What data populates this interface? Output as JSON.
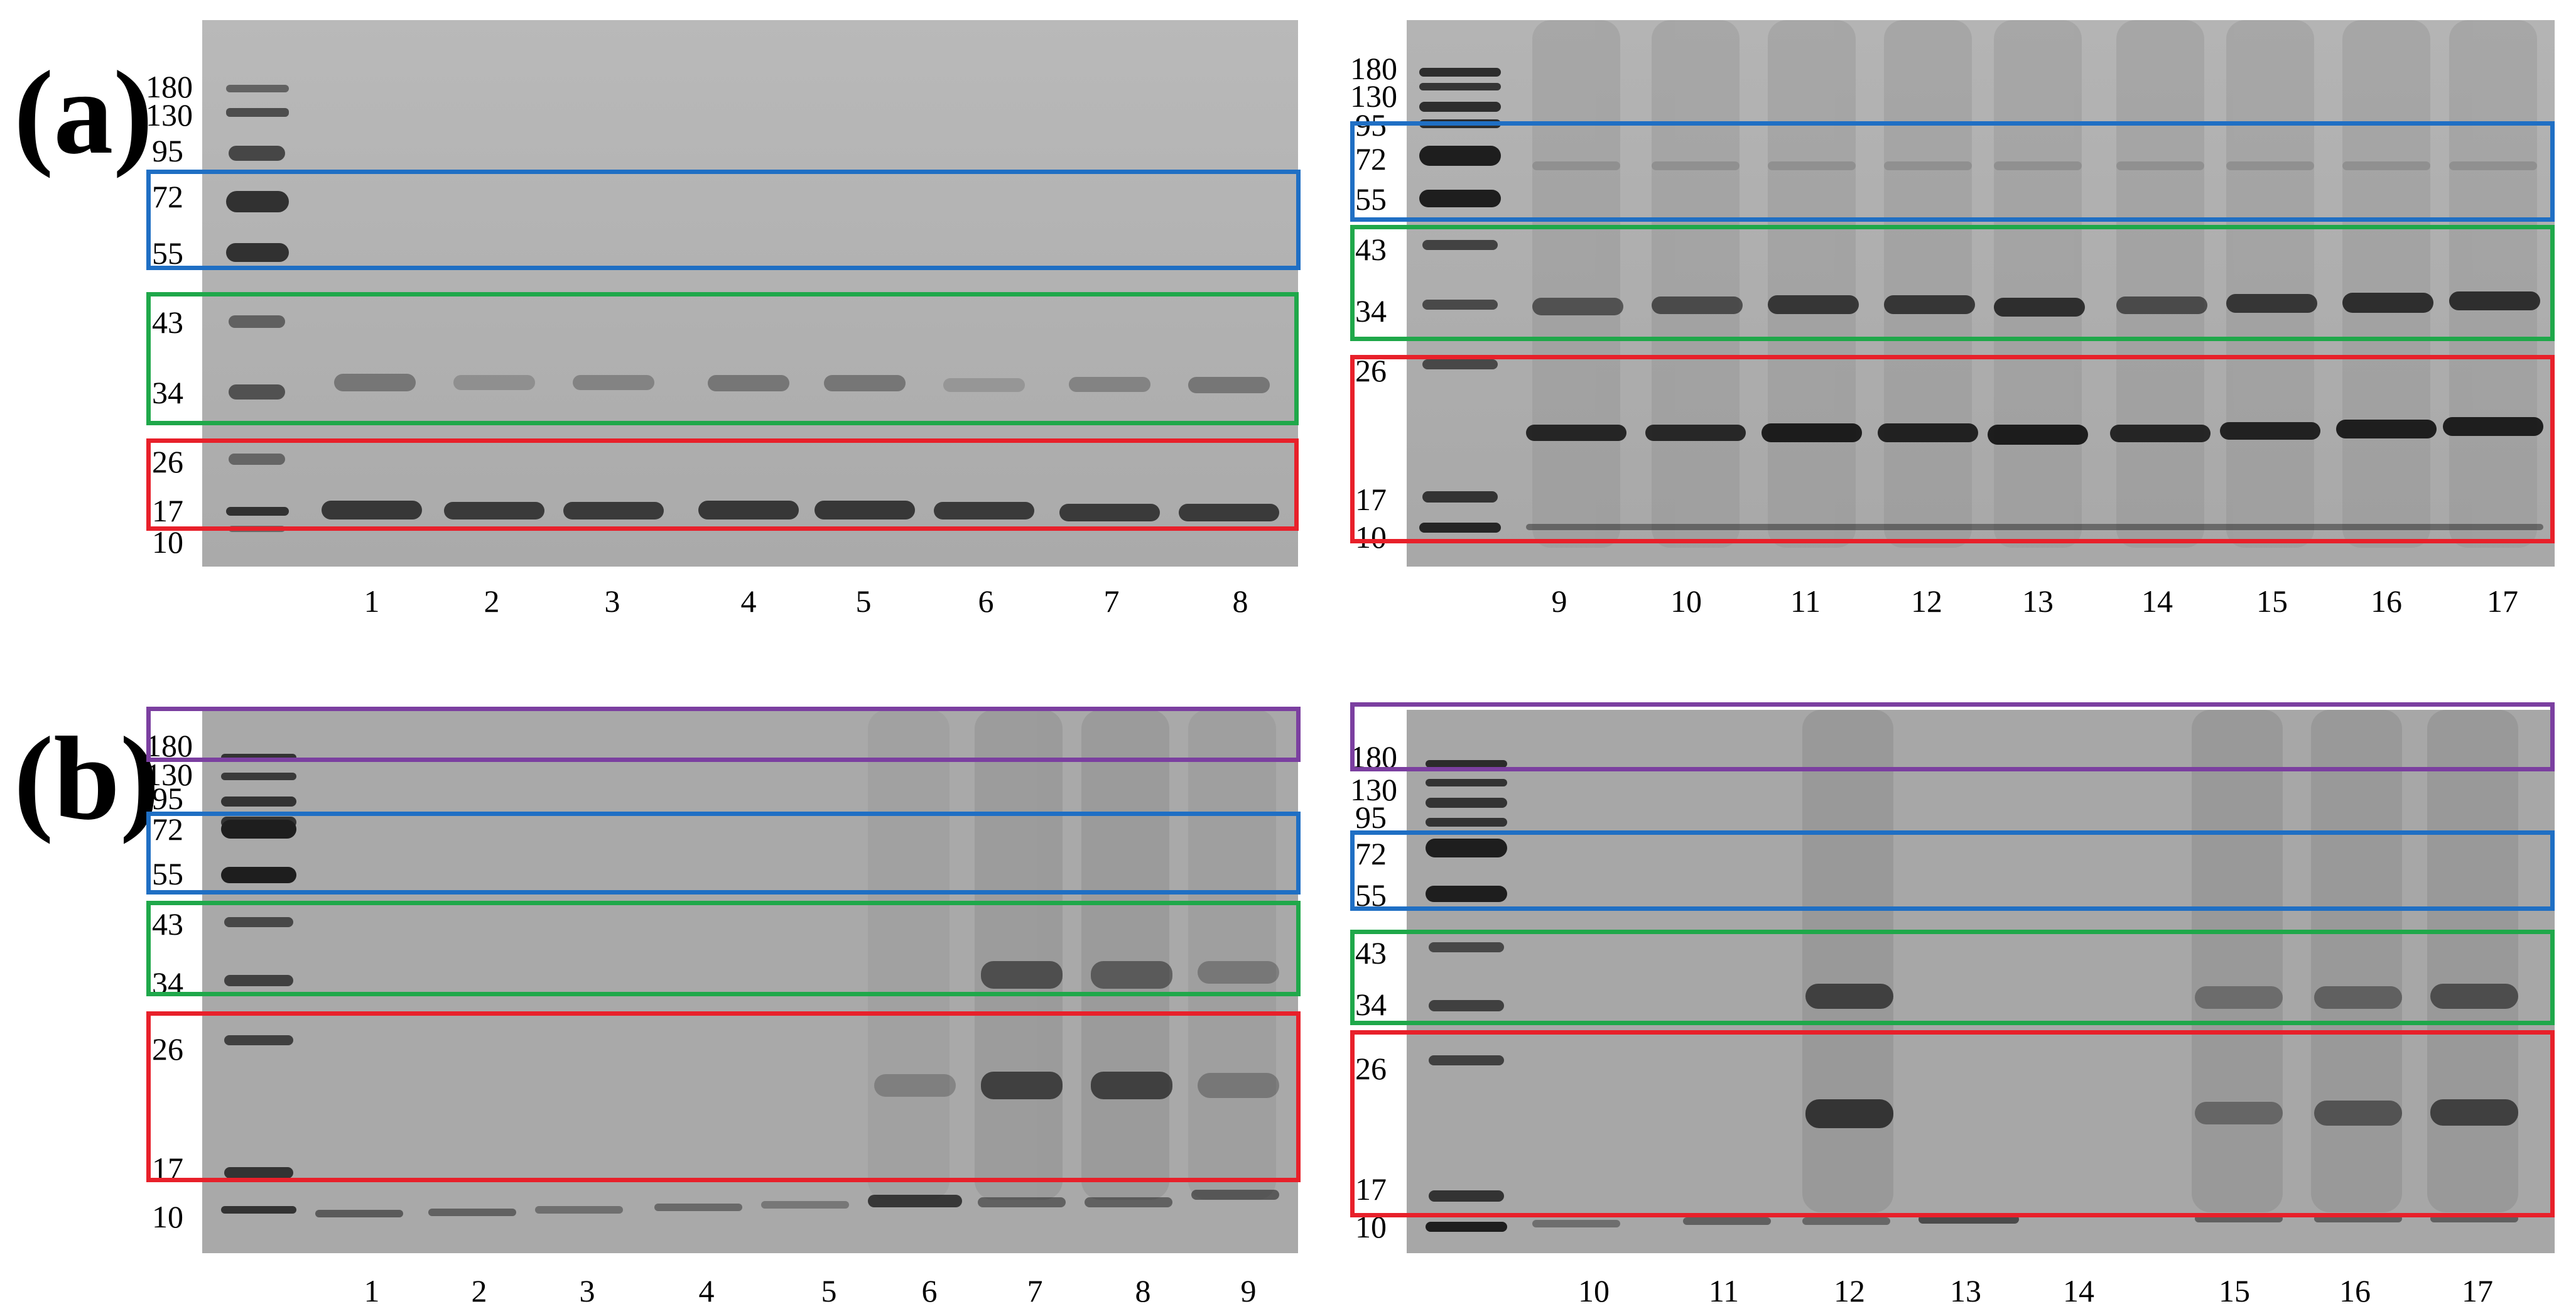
{
  "panels": [
    {
      "label": "(a)",
      "gels": [
        {
          "marker_labels": [
            "180",
            "130",
            "95",
            "72",
            "55",
            "43",
            "34",
            "26",
            "17",
            "10"
          ],
          "lanes": [
            "1",
            "2",
            "3",
            "4",
            "5",
            "6",
            "7",
            "8"
          ]
        },
        {
          "marker_labels": [
            "180",
            "130",
            "95",
            "72",
            "55",
            "43",
            "34",
            "26",
            "17",
            "10"
          ],
          "lanes": [
            "9",
            "10",
            "11",
            "12",
            "13",
            "14",
            "15",
            "16",
            "17"
          ]
        }
      ]
    },
    {
      "label": "(b)",
      "gels": [
        {
          "marker_labels": [
            "180",
            "130",
            "95",
            "72",
            "55",
            "43",
            "34",
            "26",
            "17",
            "10"
          ],
          "lanes": [
            "1",
            "2",
            "3",
            "4",
            "5",
            "6",
            "7",
            "8",
            "9"
          ]
        },
        {
          "marker_labels": [
            "180",
            "130",
            "95",
            "72",
            "55",
            "43",
            "34",
            "26",
            "17",
            "10"
          ],
          "lanes": [
            "10",
            "11",
            "12",
            "13",
            "14",
            "15",
            "16",
            "17"
          ]
        }
      ]
    }
  ],
  "region_colors": {
    "purple": "#7b3fa0",
    "blue": "#1f6fc4",
    "green": "#1fa84a",
    "red": "#e8202a"
  },
  "gel_background": "#a9a9a9"
}
